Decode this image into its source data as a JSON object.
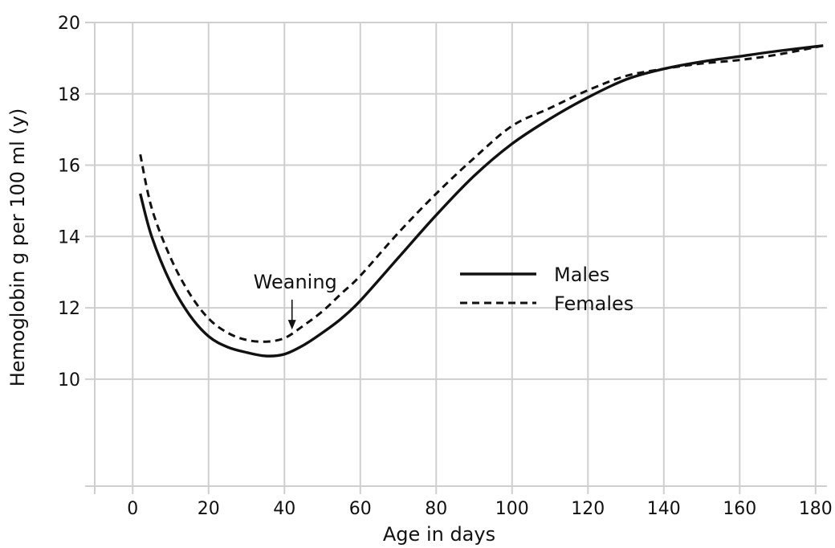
{
  "chart_data": {
    "type": "line",
    "xlabel": "Age in days",
    "ylabel": "Hemoglobin g per 100 ml (y)",
    "xlim": [
      -10,
      183
    ],
    "ylim": [
      7,
      20
    ],
    "grid": true,
    "legend_position": "center-right",
    "x_ticks": [
      0,
      20,
      40,
      60,
      80,
      100,
      120,
      140,
      160,
      180
    ],
    "x_tick_labels": [
      "0",
      "20",
      "40",
      "60",
      "80",
      "100",
      "120",
      "140",
      "160",
      "180"
    ],
    "y_ticks": [
      10,
      12,
      14,
      16,
      18,
      20
    ],
    "y_tick_labels": [
      "10",
      "12",
      "14",
      "16",
      "18",
      "20"
    ],
    "series": [
      {
        "name": "Males",
        "style": "solid",
        "color": "#111111",
        "points": [
          [
            2,
            15.2
          ],
          [
            5,
            14.0
          ],
          [
            10,
            12.7
          ],
          [
            15,
            11.8
          ],
          [
            20,
            11.2
          ],
          [
            25,
            10.9
          ],
          [
            30,
            10.75
          ],
          [
            35,
            10.65
          ],
          [
            40,
            10.7
          ],
          [
            45,
            10.95
          ],
          [
            50,
            11.3
          ],
          [
            55,
            11.7
          ],
          [
            60,
            12.2
          ],
          [
            70,
            13.4
          ],
          [
            80,
            14.6
          ],
          [
            90,
            15.7
          ],
          [
            100,
            16.6
          ],
          [
            110,
            17.3
          ],
          [
            120,
            17.9
          ],
          [
            130,
            18.4
          ],
          [
            140,
            18.7
          ],
          [
            150,
            18.9
          ],
          [
            160,
            19.05
          ],
          [
            170,
            19.2
          ],
          [
            182,
            19.35
          ]
        ]
      },
      {
        "name": "Females",
        "style": "dashed",
        "color": "#111111",
        "points": [
          [
            2,
            16.3
          ],
          [
            5,
            14.8
          ],
          [
            10,
            13.4
          ],
          [
            15,
            12.4
          ],
          [
            20,
            11.7
          ],
          [
            25,
            11.3
          ],
          [
            30,
            11.1
          ],
          [
            35,
            11.05
          ],
          [
            40,
            11.15
          ],
          [
            45,
            11.5
          ],
          [
            50,
            11.9
          ],
          [
            55,
            12.4
          ],
          [
            60,
            12.9
          ],
          [
            70,
            14.1
          ],
          [
            80,
            15.2
          ],
          [
            90,
            16.2
          ],
          [
            100,
            17.1
          ],
          [
            110,
            17.6
          ],
          [
            120,
            18.1
          ],
          [
            130,
            18.5
          ],
          [
            140,
            18.7
          ],
          [
            150,
            18.85
          ],
          [
            160,
            18.95
          ],
          [
            170,
            19.1
          ],
          [
            182,
            19.35
          ]
        ]
      }
    ],
    "annotations": [
      {
        "text": "Weaning",
        "arrow_from": [
          40,
          12.5
        ],
        "arrow_to": [
          42,
          11.3
        ]
      }
    ]
  }
}
